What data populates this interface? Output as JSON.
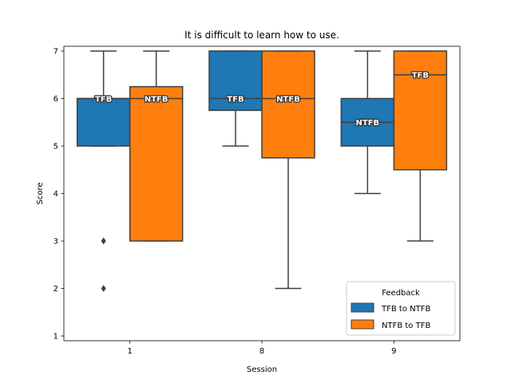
{
  "chart_data": {
    "type": "box",
    "title": "It is difficult to learn how to use.",
    "xlabel": "Session",
    "ylabel": "Score",
    "categories": [
      "1",
      "8",
      "9"
    ],
    "ylim": [
      0.9,
      7.1
    ],
    "yticks": [
      1,
      2,
      3,
      4,
      5,
      6,
      7
    ],
    "grid": false,
    "legend": {
      "title": "Feedback",
      "placement": "lower-right"
    },
    "series": [
      {
        "name": "TFB to NTFB",
        "color": "#1f77b4",
        "boxes": [
          {
            "category": "1",
            "whisker_low": 5,
            "q1": 5,
            "median": 6,
            "q3": 6,
            "whisker_high": 7,
            "outliers": [
              3,
              2
            ],
            "label": "TFB"
          },
          {
            "category": "8",
            "whisker_low": 5,
            "q1": 5.75,
            "median": 6,
            "q3": 7,
            "whisker_high": 7,
            "outliers": [],
            "label": "TFB"
          },
          {
            "category": "9",
            "whisker_low": 4,
            "q1": 5,
            "median": 5.5,
            "q3": 6,
            "whisker_high": 7,
            "outliers": [],
            "label": "NTFB"
          }
        ]
      },
      {
        "name": "NTFB to TFB",
        "color": "#ff7f0e",
        "boxes": [
          {
            "category": "1",
            "whisker_low": 3,
            "q1": 3,
            "median": 6,
            "q3": 6.25,
            "whisker_high": 7,
            "outliers": [],
            "label": "NTFB"
          },
          {
            "category": "8",
            "whisker_low": 2,
            "q1": 4.75,
            "median": 6,
            "q3": 7,
            "whisker_high": 7,
            "outliers": [],
            "label": "NTFB"
          },
          {
            "category": "9",
            "whisker_low": 3,
            "q1": 4.5,
            "median": 6.5,
            "q3": 7,
            "whisker_high": 7,
            "outliers": [],
            "label": "TFB"
          }
        ]
      }
    ]
  }
}
